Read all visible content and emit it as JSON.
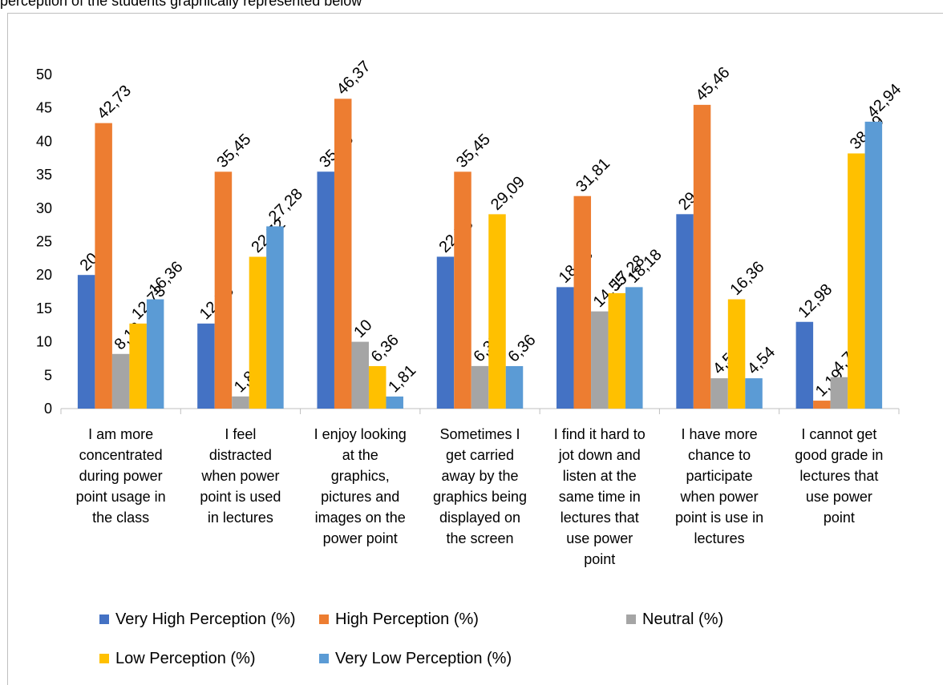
{
  "caption": "perception of the students graphically represented below",
  "chart_data": {
    "type": "bar",
    "categories": [
      "I am more concentrated during power point usage in the class",
      "I feel distracted when power point is used in lectures",
      "I enjoy looking at the graphics, pictures and images on the power point",
      "Sometimes I get carried away by the graphics being displayed on the screen",
      "I find it hard to jot down and listen at the same time in lectures that use power point",
      "I have more chance to participate when power point is use in lectures",
      "I cannot get good grade in lectures that use power point"
    ],
    "category_lines": [
      [
        "I am more",
        "concentrated",
        "during power",
        "point usage in",
        "the class"
      ],
      [
        "I feel",
        "distracted",
        "when power",
        "point is used",
        "in lectures"
      ],
      [
        "I enjoy looking",
        "at the",
        "graphics,",
        "pictures and",
        "images on the",
        "power point"
      ],
      [
        "Sometimes I",
        "get carried",
        "away by the",
        "graphics being",
        "displayed on",
        "the screen"
      ],
      [
        "I find it hard to",
        "jot down and",
        "listen at the",
        "same time in",
        "lectures that",
        "use power",
        "point"
      ],
      [
        "I have more",
        "chance to",
        "participate",
        "when power",
        "point is use in",
        "lectures"
      ],
      [
        "I cannot get",
        "good grade in",
        "lectures that",
        "use power",
        "point"
      ]
    ],
    "series": [
      {
        "name": "Very High Perception (%)",
        "color": "#4472c4",
        "values": [
          20,
          12.73,
          35.46,
          22.73,
          18.18,
          29.1,
          12.98
        ],
        "labels": [
          "20",
          "12,73",
          "35,46",
          "22,73",
          "18,18",
          "29,1",
          "12,98"
        ]
      },
      {
        "name": "High Perception (%)",
        "color": "#ed7d31",
        "values": [
          42.73,
          35.45,
          46.37,
          35.45,
          31.81,
          45.46,
          1.19
        ],
        "labels": [
          "42,73",
          "35,45",
          "46,37",
          "35,45",
          "31,81",
          "45,46",
          "1,19"
        ]
      },
      {
        "name": "Neutral (%)",
        "color": "#a5a5a5",
        "values": [
          8.18,
          1.82,
          10,
          6.37,
          14.55,
          4.54,
          4.7
        ],
        "labels": [
          "8,18",
          "1,82",
          "10",
          "6,37",
          "14,55",
          "4,54",
          "4,7"
        ]
      },
      {
        "name": "Low Perception (%)",
        "color": "#ffc000",
        "values": [
          12.73,
          22.72,
          6.36,
          29.09,
          17.28,
          16.36,
          38.19
        ],
        "labels": [
          "12,73",
          "22,72",
          "6,36",
          "29,09",
          "17,28",
          "16,36",
          "38,19"
        ]
      },
      {
        "name": "Very Low Perception (%)",
        "color": "#5b9bd5",
        "values": [
          16.36,
          27.28,
          1.81,
          6.36,
          18.18,
          4.54,
          42.94
        ],
        "labels": [
          "16,36",
          "27,28",
          "1,81",
          "6,36",
          "18,18",
          "4,54",
          "42,94"
        ]
      }
    ],
    "ylim": [
      0,
      50
    ],
    "yticks": [
      0,
      5,
      10,
      15,
      20,
      25,
      30,
      35,
      40,
      45,
      50
    ],
    "title": "",
    "xlabel": "",
    "ylabel": "",
    "legend_position": "bottom",
    "grid": false
  }
}
